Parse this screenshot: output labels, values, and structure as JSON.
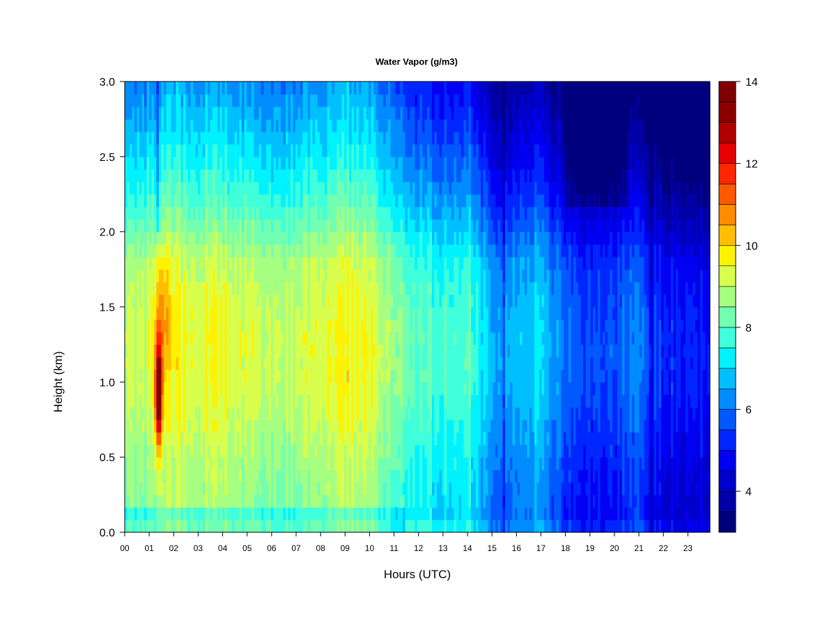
{
  "chart_data": {
    "type": "heatmap",
    "title": "Water Vapor (g/m3)",
    "xlabel": "Hours (UTC)",
    "ylabel": "Height (km)",
    "x_tick_labels": [
      "00",
      "01",
      "02",
      "03",
      "04",
      "05",
      "06",
      "07",
      "08",
      "09",
      "10",
      "11",
      "12",
      "13",
      "14",
      "15",
      "16",
      "17",
      "18",
      "19",
      "20",
      "21",
      "22",
      "23"
    ],
    "y_tick_labels": [
      "0.0",
      "0.5",
      "1.0",
      "1.5",
      "2.0",
      "2.5",
      "3.0"
    ],
    "xlim": [
      0,
      23.9
    ],
    "ylim": [
      0,
      3.0
    ],
    "colorbar": {
      "range": [
        3,
        14
      ],
      "levels": [
        3.0,
        3.5,
        4.0,
        4.5,
        5.0,
        5.5,
        6.0,
        6.5,
        7.0,
        7.5,
        8.0,
        8.5,
        9.0,
        9.5,
        10.0,
        10.5,
        11.0,
        11.5,
        12.0,
        12.5,
        13.0,
        13.5,
        14.0
      ],
      "tick_labels": [
        "4",
        "6",
        "8",
        "10",
        "12",
        "14"
      ],
      "colors": [
        "#00007F",
        "#0000A6",
        "#0000CD",
        "#0000F2",
        "#0026FF",
        "#0059FF",
        "#008CFF",
        "#00BFFF",
        "#00F2FF",
        "#40FFDB",
        "#73FFB2",
        "#A6FF80",
        "#D9FF4D",
        "#FFF200",
        "#FFBF00",
        "#FF8C00",
        "#FF5900",
        "#FF2600",
        "#E60000",
        "#B20000",
        "#8C0000",
        "#7F0000"
      ]
    },
    "grid": false,
    "legend": "right colorbar",
    "features": {
      "max_core": {
        "hour": 1.4,
        "height_km": 0.9,
        "value": 13.5
      },
      "moist_period_hours": [
        0,
        11.5
      ],
      "dry_period_hours": [
        14.5,
        23.9
      ],
      "driest_region": {
        "hours": [
          18,
          20
        ],
        "height_km": [
          2.0,
          3.0
        ],
        "value": 4.0
      }
    }
  }
}
